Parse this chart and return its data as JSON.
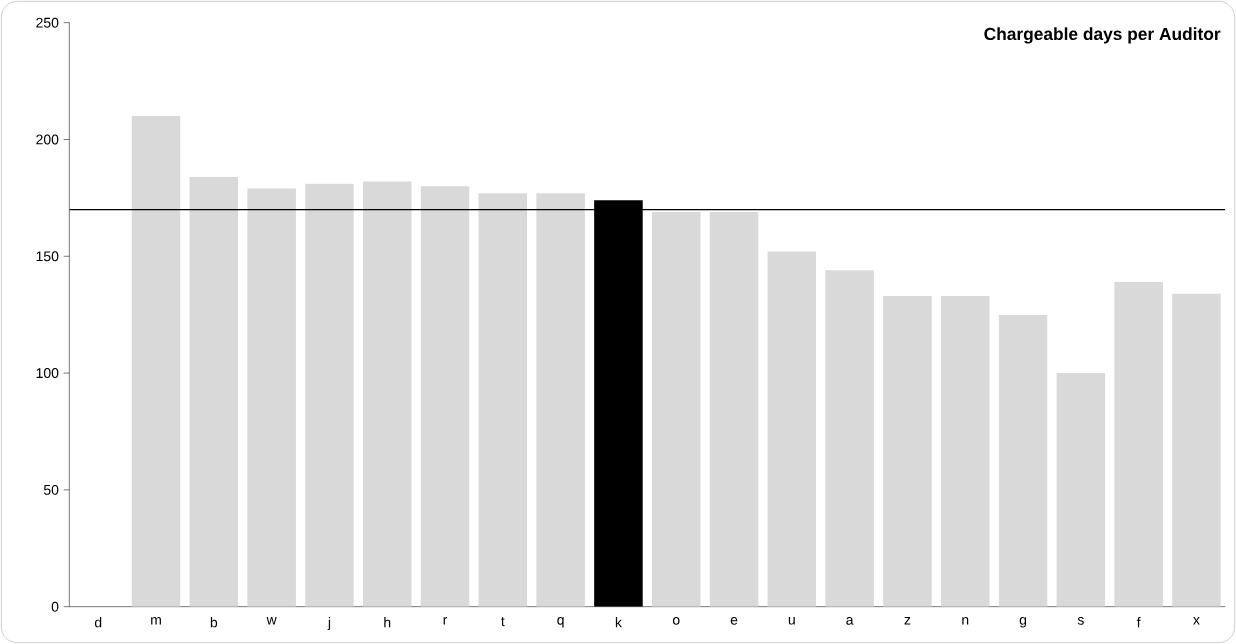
{
  "chart_data": {
    "type": "bar",
    "title": "Chargeable days per Auditor",
    "categories": [
      "d",
      "m",
      "b",
      "w",
      "j",
      "h",
      "r",
      "t",
      "q",
      "k",
      "o",
      "e",
      "u",
      "a",
      "z",
      "n",
      "g",
      "s",
      "f",
      "x"
    ],
    "values": [
      0,
      210,
      184,
      179,
      181,
      182,
      180,
      177,
      177,
      174,
      169,
      169,
      152,
      144,
      133,
      133,
      125,
      100,
      139,
      134
    ],
    "colors": [
      "#d9d9d9",
      "#d9d9d9",
      "#d9d9d9",
      "#d9d9d9",
      "#d9d9d9",
      "#d9d9d9",
      "#d9d9d9",
      "#d9d9d9",
      "#d9d9d9",
      "#000000",
      "#d9d9d9",
      "#d9d9d9",
      "#d9d9d9",
      "#d9d9d9",
      "#d9d9d9",
      "#d9d9d9",
      "#d9d9d9",
      "#d9d9d9",
      "#d9d9d9",
      "#d9d9d9"
    ],
    "ylim": [
      0,
      250
    ],
    "yticks": [
      0,
      50,
      100,
      150,
      200,
      250
    ],
    "ref_lines": [
      {
        "axis": "y",
        "value": 170,
        "color": "#000000"
      }
    ],
    "grid": false
  }
}
